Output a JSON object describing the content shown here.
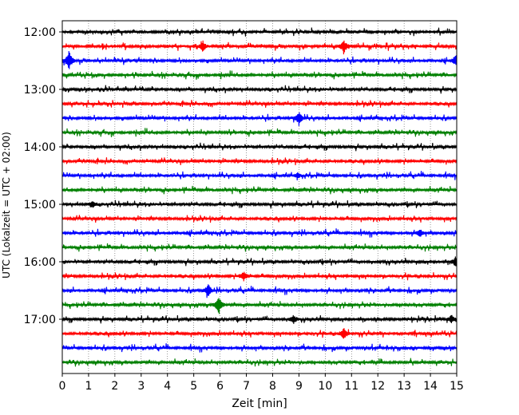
{
  "chart_data": {
    "type": "line",
    "subtype": "helicorder",
    "xlabel": "Zeit  [min]",
    "ylabel": "UTC (Lokalzeit = UTC + 02:00)",
    "xlim": [
      0,
      15
    ],
    "x_ticks": [
      "0",
      "1",
      "2",
      "3",
      "4",
      "5",
      "6",
      "7",
      "8",
      "9",
      "10",
      "11",
      "12",
      "13",
      "14",
      "15"
    ],
    "y_tick_labels": [
      "12:00",
      "13:00",
      "14:00",
      "15:00",
      "16:00",
      "17:00"
    ],
    "grid": "vertical dotted at each minute",
    "trace_colors": [
      "#000000",
      "#ff0000",
      "#0000ff",
      "#008000"
    ],
    "trace_start_times": [
      "12:00",
      "12:15",
      "12:30",
      "12:45",
      "13:00",
      "13:15",
      "13:30",
      "13:45",
      "14:00",
      "14:15",
      "14:30",
      "14:45",
      "15:00",
      "15:15",
      "15:30",
      "15:45",
      "16:00",
      "16:15",
      "16:30",
      "16:45",
      "17:00",
      "17:15",
      "17:30",
      "17:45"
    ],
    "events": [
      {
        "row": 1,
        "minute": 5.35,
        "amp": 0.4
      },
      {
        "row": 1,
        "minute": 10.7,
        "amp": 0.55
      },
      {
        "row": 2,
        "minute": 0.25,
        "amp": 0.9
      },
      {
        "row": 2,
        "minute": 14.95,
        "amp": 0.35
      },
      {
        "row": 6,
        "minute": 9.0,
        "amp": 0.55
      },
      {
        "row": 10,
        "minute": 8.95,
        "amp": 0.2
      },
      {
        "row": 12,
        "minute": 1.15,
        "amp": 0.25
      },
      {
        "row": 14,
        "minute": 13.6,
        "amp": 0.3
      },
      {
        "row": 16,
        "minute": 14.95,
        "amp": 0.35
      },
      {
        "row": 17,
        "minute": 6.9,
        "amp": 0.35
      },
      {
        "row": 18,
        "minute": 5.55,
        "amp": 0.5
      },
      {
        "row": 19,
        "minute": 5.95,
        "amp": 0.75
      },
      {
        "row": 20,
        "minute": 8.8,
        "amp": 0.35
      },
      {
        "row": 20,
        "minute": 14.8,
        "amp": 0.3
      },
      {
        "row": 21,
        "minute": 10.7,
        "amp": 0.45
      }
    ]
  }
}
